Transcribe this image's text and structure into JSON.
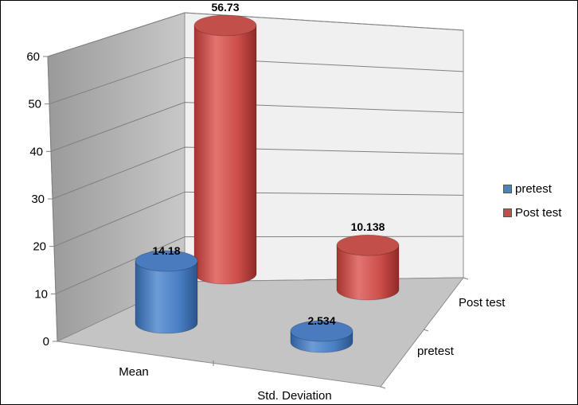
{
  "chart_data": {
    "type": "bar",
    "style": "3d-cylinder",
    "title": "",
    "xlabel": "",
    "ylabel": "",
    "categories": [
      "Mean",
      "Std. Deviation"
    ],
    "depth_categories": [
      "pretest",
      "Post test"
    ],
    "yticks": [
      "0",
      "10",
      "20",
      "30",
      "40",
      "50",
      "60"
    ],
    "ylim": [
      0,
      60
    ],
    "grid": true,
    "legend_position": "right",
    "series": [
      {
        "name": "pretest",
        "color": "#4f81bd",
        "values": [
          14.18,
          2.534
        ],
        "labels": [
          "14.18",
          "2.534"
        ]
      },
      {
        "name": "Post test",
        "color": "#c0504d",
        "values": [
          56.73,
          10.138
        ],
        "labels": [
          "56.73",
          "10.138"
        ]
      }
    ]
  }
}
